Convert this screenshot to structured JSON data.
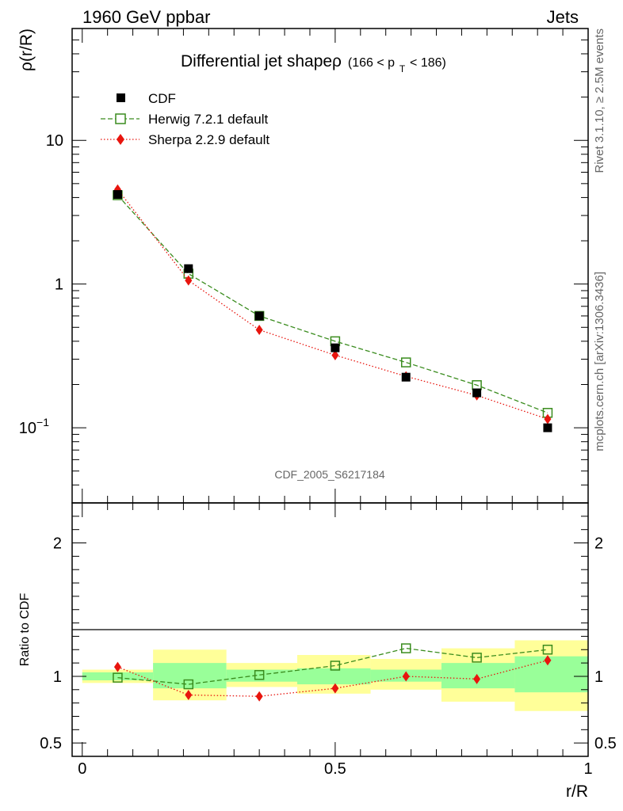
{
  "header": {
    "left": "1960 GeV ppbar",
    "right": "Jets"
  },
  "side_labels": {
    "rivet": "Rivet 3.1.10, ≥ 2.5M events",
    "mcplots": "mcplots.cern.ch [arXiv:1306.3436]"
  },
  "watermark": "CDF_2005_S6217184",
  "chart_data": [
    {
      "type": "line",
      "title_main": "Differential jet shapeρ",
      "title_range": "(166 < p",
      "title_sub": "T",
      "title_range_end": " < 186)",
      "ylabel": "ρ(r/R)",
      "yscale": "log",
      "ylim": [
        0.03,
        60
      ],
      "xlim": [
        -0.02,
        1.0
      ],
      "y_ticks": [
        {
          "v": 10,
          "label": "10"
        },
        {
          "v": 1,
          "label": "1"
        },
        {
          "v": 0.1,
          "label": "10",
          "sup": "−1"
        }
      ],
      "legend": {
        "placement": "top-left",
        "entries": [
          {
            "label": "CDF",
            "marker": "filled-square",
            "color": "#000000"
          },
          {
            "label": "Herwig 7.2.1 default",
            "marker": "open-square",
            "color": "#3a8c1e",
            "dash": "dashed"
          },
          {
            "label": "Sherpa 2.2.9 default",
            "marker": "diamond",
            "color": "#e8150e",
            "dash": "dotted"
          }
        ]
      },
      "x": [
        0.07,
        0.21,
        0.35,
        0.5,
        0.64,
        0.78,
        0.92
      ],
      "series": [
        {
          "name": "CDF",
          "values": [
            4.2,
            1.28,
            0.6,
            0.36,
            0.225,
            0.175,
            0.1
          ]
        },
        {
          "name": "Herwig 7.2.1 default",
          "values": [
            4.15,
            1.18,
            0.6,
            0.4,
            0.285,
            0.198,
            0.127
          ]
        },
        {
          "name": "Sherpa 2.2.9 default",
          "values": [
            4.55,
            1.06,
            0.48,
            0.32,
            0.228,
            0.168,
            0.115
          ]
        }
      ]
    },
    {
      "type": "line",
      "ylabel": "Ratio to CDF",
      "xlabel": "r/R",
      "ylim": [
        0.4,
        2.3
      ],
      "xlim": [
        -0.02,
        1.0
      ],
      "y_ticks": [
        {
          "v": 2,
          "label": "2"
        },
        {
          "v": 1,
          "label": "1"
        },
        {
          "v": 0.5,
          "label": "0.5"
        }
      ],
      "x_ticks": [
        {
          "v": 0,
          "label": "0"
        },
        {
          "v": 0.5,
          "label": "0.5"
        },
        {
          "v": 1,
          "label": "1"
        }
      ],
      "bands": [
        {
          "x0": 0.0,
          "x1": 0.14,
          "stat": [
            0.97,
            1.03
          ],
          "total": [
            0.95,
            1.05
          ]
        },
        {
          "x0": 0.14,
          "x1": 0.285,
          "stat": [
            0.91,
            1.1
          ],
          "total": [
            0.82,
            1.2
          ]
        },
        {
          "x0": 0.285,
          "x1": 0.425,
          "stat": [
            0.96,
            1.05
          ],
          "total": [
            0.92,
            1.1
          ]
        },
        {
          "x0": 0.425,
          "x1": 0.57,
          "stat": [
            0.94,
            1.06
          ],
          "total": [
            0.87,
            1.16
          ]
        },
        {
          "x0": 0.57,
          "x1": 0.71,
          "stat": [
            0.96,
            1.05
          ],
          "total": [
            0.9,
            1.13
          ]
        },
        {
          "x0": 0.71,
          "x1": 0.855,
          "stat": [
            0.91,
            1.1
          ],
          "total": [
            0.81,
            1.21
          ]
        },
        {
          "x0": 0.855,
          "x1": 1.0,
          "stat": [
            0.88,
            1.15
          ],
          "total": [
            0.74,
            1.27
          ]
        }
      ],
      "x": [
        0.07,
        0.21,
        0.35,
        0.5,
        0.64,
        0.78,
        0.92
      ],
      "series": [
        {
          "name": "Herwig 7.2.1 default",
          "values": [
            0.99,
            0.94,
            1.01,
            1.08,
            1.21,
            1.14,
            1.2
          ]
        },
        {
          "name": "Sherpa 2.2.9 default",
          "values": [
            1.07,
            0.86,
            0.85,
            0.91,
            1.0,
            0.98,
            1.12
          ]
        }
      ]
    }
  ],
  "colors": {
    "herwig": "#3a8c1e",
    "sherpa": "#e8150e",
    "data": "#000000",
    "band_stat": "#99ff99",
    "band_total": "#ffff99"
  }
}
